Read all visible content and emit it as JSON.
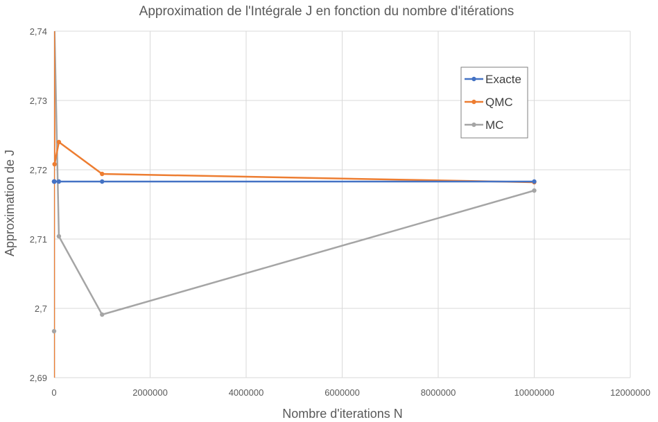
{
  "chart_data": {
    "type": "line",
    "title": "Approximation de l'Intégrale J en fonction du nombre d'itérations",
    "xlabel": "Nombre d'iterations N",
    "ylabel": "Approximation de J",
    "xlim": [
      0,
      12000000
    ],
    "ylim": [
      2.69,
      2.74
    ],
    "xticks": [
      0,
      2000000,
      4000000,
      6000000,
      8000000,
      10000000,
      12000000
    ],
    "xtick_labels": [
      "0",
      "2000000",
      "4000000",
      "6000000",
      "8000000",
      "10000000",
      "12000000"
    ],
    "yticks": [
      2.69,
      2.7,
      2.71,
      2.72,
      2.73,
      2.74
    ],
    "ytick_labels": [
      "2,69",
      "2,7",
      "2,71",
      "2,72",
      "2,73",
      "2,74"
    ],
    "grid": true,
    "legend_position": "top-right",
    "series": [
      {
        "name": "Exacte",
        "color": "#4472C4",
        "x": [
          10,
          100,
          1000,
          10000,
          100000,
          1000000,
          10000000
        ],
        "y": [
          2.7183,
          2.7183,
          2.7183,
          2.7183,
          2.7183,
          2.7183,
          2.7183
        ]
      },
      {
        "name": "QMC",
        "color": "#ED7D31",
        "x": [
          10,
          100,
          1000,
          10000,
          100000,
          1000000,
          10000000
        ],
        "y": [
          2.69,
          2.74,
          2.74,
          2.7208,
          2.724,
          2.7194,
          2.7182
        ]
      },
      {
        "name": "MC",
        "color": "#A5A5A5",
        "x": [
          10,
          100,
          1000,
          10000,
          100000,
          1000000,
          10000000
        ],
        "y": [
          2.69,
          2.6967,
          2.74,
          2.74,
          2.7104,
          2.6991,
          2.717
        ]
      }
    ]
  }
}
